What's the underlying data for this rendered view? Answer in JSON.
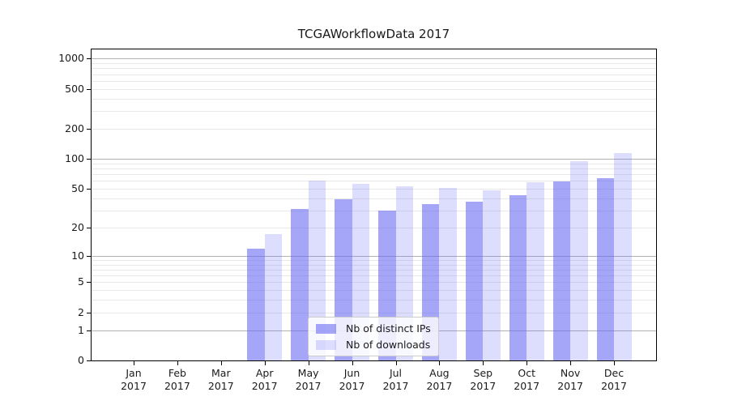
{
  "chart_data": {
    "type": "bar",
    "title": "TCGAWorkflowData 2017",
    "year_label": "2017",
    "categories": [
      "Jan",
      "Feb",
      "Mar",
      "Apr",
      "May",
      "Jun",
      "Jul",
      "Aug",
      "Sep",
      "Oct",
      "Nov",
      "Dec"
    ],
    "series": [
      {
        "key": "distinct-ips",
        "name": "Nb of distinct IPs",
        "color": "rgba(102,102,245,0.58)",
        "values": [
          0,
          0,
          0,
          12,
          31,
          39,
          30,
          35,
          37,
          43,
          59,
          64
        ]
      },
      {
        "key": "downloads",
        "name": "Nb of downloads",
        "color": "rgba(102,102,245,0.22)",
        "values": [
          0,
          0,
          0,
          17,
          60,
          56,
          53,
          51,
          48,
          58,
          95,
          115
        ]
      }
    ],
    "y_axis": {
      "scale": "log10(value+1)",
      "tick_values": [
        1000,
        500,
        200,
        100,
        50,
        20,
        10,
        5,
        2,
        1,
        0
      ],
      "tick_labels": [
        "1000",
        "500",
        "200",
        "100",
        "50",
        "20",
        "10",
        "5",
        "2",
        "1",
        "0"
      ],
      "major_gridlines": [
        1,
        10,
        100,
        1000
      ],
      "minor_gridlines": [
        2,
        3,
        4,
        5,
        6,
        7,
        8,
        9,
        20,
        30,
        40,
        50,
        60,
        70,
        80,
        90,
        200,
        300,
        400,
        500,
        600,
        700,
        800,
        900
      ],
      "top_value": 1234
    },
    "legend": {
      "position": "lower-center"
    },
    "grid": "on",
    "colors": {
      "major_grid": "#b2b2b2",
      "minor_grid": "#e8e8e8",
      "spine": "#000000",
      "text": "#1a1a1a",
      "background": "#ffffff"
    }
  }
}
